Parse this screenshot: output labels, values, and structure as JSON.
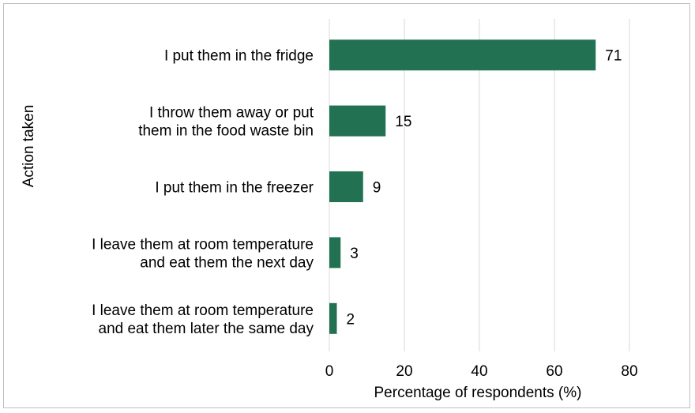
{
  "chart_data": {
    "type": "bar",
    "orientation": "horizontal",
    "categories": [
      [
        "I put them in the fridge"
      ],
      [
        "I throw them away or put",
        "them in the food waste bin"
      ],
      [
        "I put them in the freezer"
      ],
      [
        "I leave them at room temperature",
        "and eat them the next day"
      ],
      [
        "I leave them at room temperature",
        "and eat them later the same day"
      ]
    ],
    "values": [
      71,
      15,
      9,
      3,
      2
    ],
    "data_labels": [
      "71",
      "15",
      "9",
      "3",
      "2"
    ],
    "xlabel": "Percentage of respondents (%)",
    "ylabel": "Action taken",
    "xlim": [
      0,
      80
    ],
    "x_ticks": [
      0,
      20,
      40,
      60,
      80
    ],
    "x_tick_labels": [
      "0",
      "20",
      "40",
      "60",
      "80"
    ],
    "grid": "vertical",
    "legend": "none",
    "bar_color": "#217152",
    "grid_color": "#d9d9d9"
  }
}
